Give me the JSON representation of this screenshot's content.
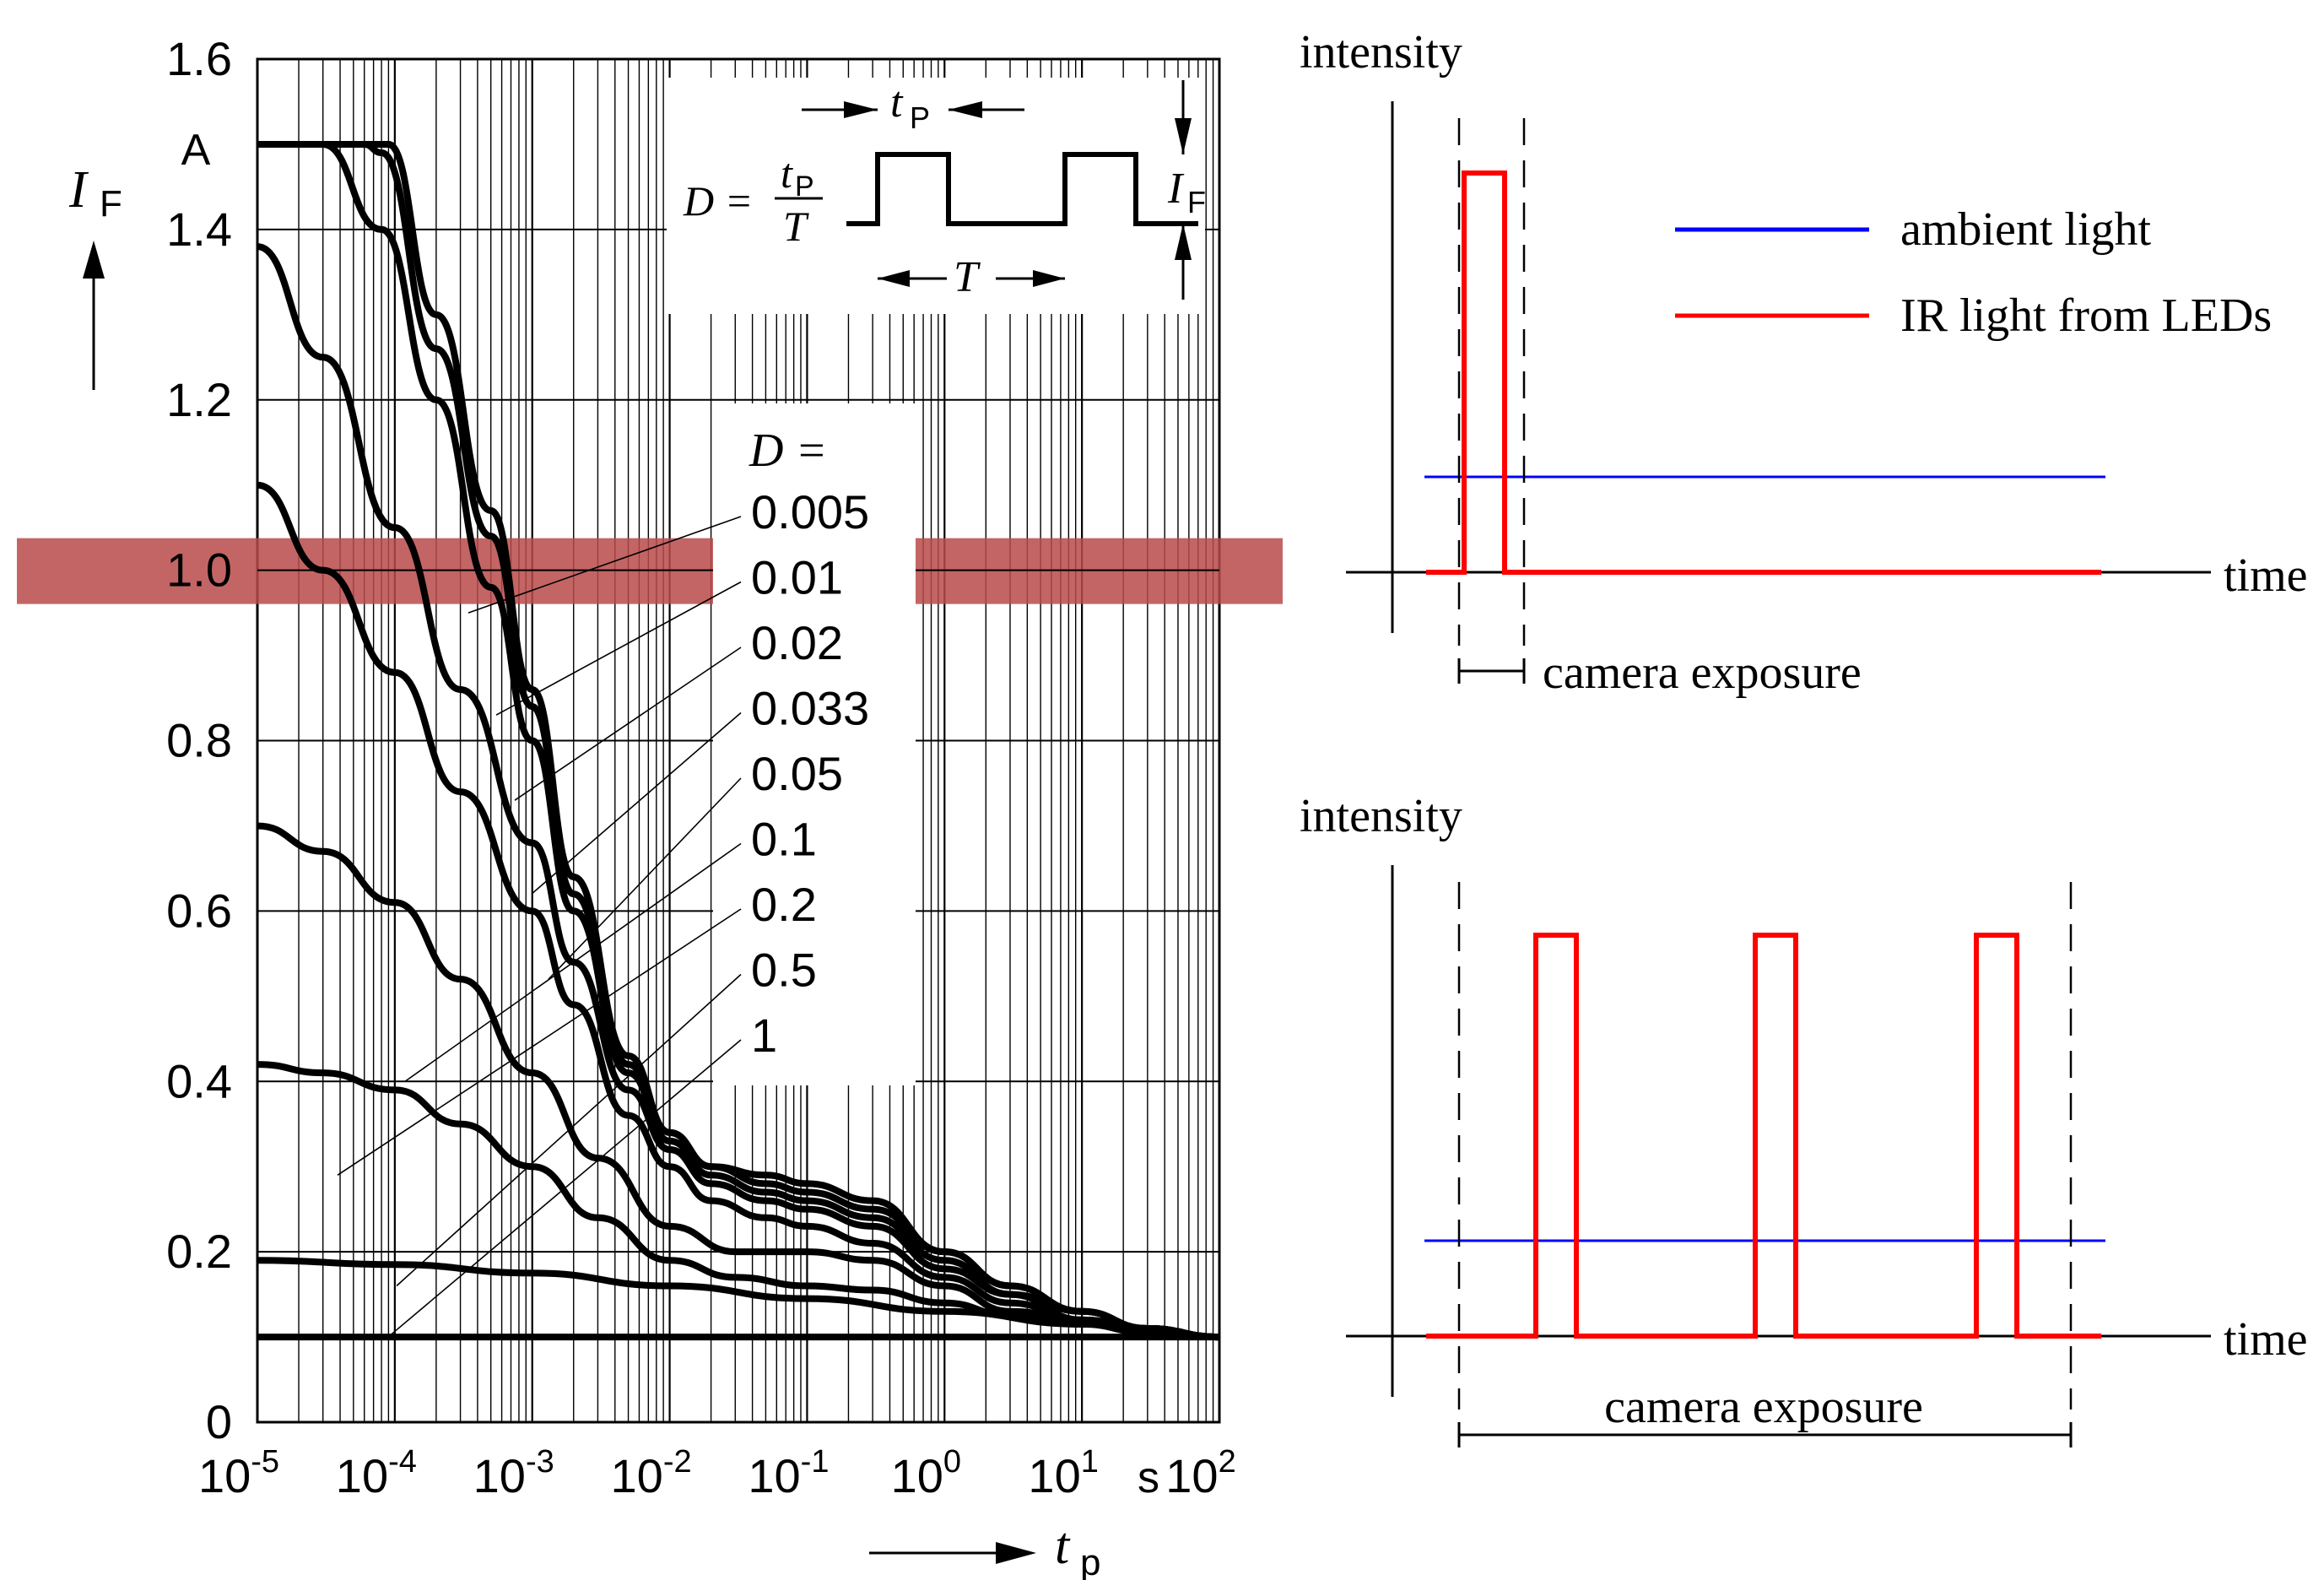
{
  "chart_data": [
    {
      "type": "line",
      "title": "",
      "xlabel": "t",
      "xlabel_sub": "p",
      "ylabel": "I",
      "ylabel_sub": "F",
      "y_unit": "A",
      "x_unit": "s",
      "x_scale": "log",
      "xlim": [
        1e-05,
        100
      ],
      "ylim": [
        0,
        1.6
      ],
      "grid": true,
      "x_ticks": [
        {
          "base": "10",
          "exp": "-5"
        },
        {
          "base": "10",
          "exp": "-4"
        },
        {
          "base": "10",
          "exp": "-3"
        },
        {
          "base": "10",
          "exp": "-2"
        },
        {
          "base": "10",
          "exp": "-1"
        },
        {
          "base": "10",
          "exp": "0"
        },
        {
          "base": "10",
          "exp": "1"
        },
        {
          "base": "10",
          "exp": "2"
        }
      ],
      "y_ticks": [
        "0",
        "0.2",
        "0.4",
        "0.6",
        "0.8",
        "1.0",
        "1.2",
        "1.4",
        "1.6"
      ],
      "highlight_band": {
        "y": 1.0,
        "color": "#b94a4a"
      },
      "inset": {
        "formula_lhs": "D =",
        "frac_num": "t",
        "frac_num_sub": "P",
        "frac_den": "T",
        "tp_label": "t",
        "tp_label_sub": "P",
        "T_label": "T",
        "if_label": "I",
        "if_label_sub": "F"
      },
      "legend_title": "D =",
      "series": [
        {
          "name": "0.005",
          "x": [
            1e-05,
            6e-05,
            9e-05,
            0.0002,
            0.0005,
            0.001,
            0.002,
            0.005,
            0.01,
            0.02,
            0.05,
            0.1,
            0.3,
            1,
            3,
            10,
            30,
            100
          ],
          "y": [
            1.5,
            1.5,
            1.5,
            1.3,
            1.07,
            0.86,
            0.64,
            0.43,
            0.34,
            0.3,
            0.29,
            0.28,
            0.26,
            0.2,
            0.16,
            0.13,
            0.11,
            0.1
          ]
        },
        {
          "name": "0.01",
          "x": [
            1e-05,
            6e-05,
            8e-05,
            0.0002,
            0.0005,
            0.001,
            0.002,
            0.005,
            0.01,
            0.02,
            0.05,
            0.1,
            0.3,
            1,
            3,
            10,
            30,
            100
          ],
          "y": [
            1.5,
            1.5,
            1.49,
            1.26,
            1.04,
            0.84,
            0.62,
            0.42,
            0.34,
            0.3,
            0.28,
            0.27,
            0.25,
            0.2,
            0.16,
            0.13,
            0.11,
            0.1
          ]
        },
        {
          "name": "0.02",
          "x": [
            1e-05,
            3e-05,
            8e-05,
            0.0002,
            0.0005,
            0.001,
            0.002,
            0.005,
            0.01,
            0.02,
            0.05,
            0.1,
            0.3,
            1,
            3,
            10,
            30,
            100
          ],
          "y": [
            1.5,
            1.5,
            1.4,
            1.2,
            0.98,
            0.8,
            0.6,
            0.41,
            0.33,
            0.29,
            0.27,
            0.26,
            0.24,
            0.19,
            0.15,
            0.13,
            0.11,
            0.1
          ]
        },
        {
          "name": "0.033",
          "x": [
            1e-05,
            3e-05,
            0.0001,
            0.0003,
            0.001,
            0.002,
            0.005,
            0.01,
            0.02,
            0.05,
            0.1,
            0.3,
            1,
            3,
            10,
            30,
            100
          ],
          "y": [
            1.38,
            1.25,
            1.05,
            0.86,
            0.68,
            0.54,
            0.39,
            0.32,
            0.28,
            0.26,
            0.25,
            0.23,
            0.18,
            0.15,
            0.12,
            0.11,
            0.1
          ]
        },
        {
          "name": "0.05",
          "x": [
            1e-05,
            3e-05,
            0.0001,
            0.0003,
            0.001,
            0.002,
            0.005,
            0.01,
            0.02,
            0.05,
            0.1,
            0.3,
            1,
            3,
            10,
            30,
            100
          ],
          "y": [
            1.1,
            1.0,
            0.88,
            0.74,
            0.6,
            0.49,
            0.36,
            0.3,
            0.26,
            0.24,
            0.23,
            0.21,
            0.17,
            0.14,
            0.12,
            0.11,
            0.1
          ]
        },
        {
          "name": "0.1",
          "x": [
            1e-05,
            3e-05,
            0.0001,
            0.0003,
            0.001,
            0.003,
            0.01,
            0.03,
            0.1,
            0.3,
            1,
            3,
            10,
            30,
            100
          ],
          "y": [
            0.7,
            0.67,
            0.61,
            0.52,
            0.41,
            0.31,
            0.23,
            0.2,
            0.2,
            0.19,
            0.16,
            0.13,
            0.12,
            0.11,
            0.1
          ]
        },
        {
          "name": "0.2",
          "x": [
            1e-05,
            3e-05,
            0.0001,
            0.0003,
            0.001,
            0.003,
            0.01,
            0.03,
            0.1,
            0.3,
            1,
            3,
            10,
            30,
            100
          ],
          "y": [
            0.42,
            0.41,
            0.39,
            0.35,
            0.3,
            0.24,
            0.19,
            0.17,
            0.16,
            0.155,
            0.14,
            0.125,
            0.115,
            0.105,
            0.1
          ]
        },
        {
          "name": "0.5",
          "x": [
            1e-05,
            0.0001,
            0.001,
            0.01,
            0.1,
            1,
            10,
            100
          ],
          "y": [
            0.19,
            0.185,
            0.175,
            0.16,
            0.145,
            0.13,
            0.115,
            0.1
          ]
        },
        {
          "name": "1",
          "x": [
            1e-05,
            0.001,
            0.1,
            10,
            100
          ],
          "y": [
            0.1,
            0.1,
            0.1,
            0.1,
            0.1
          ]
        }
      ]
    },
    {
      "type": "line",
      "title": "",
      "ylabel": "intensity",
      "xlabel": "time",
      "annotation": "camera exposure",
      "series": [
        {
          "name": "ambient light",
          "color": "#0000ff",
          "pulses": 0
        },
        {
          "name": "IR light from LEDs",
          "color": "#ff0000",
          "pulses": 1
        }
      ]
    },
    {
      "type": "line",
      "title": "",
      "ylabel": "intensity",
      "xlabel": "time",
      "annotation": "camera exposure",
      "series": [
        {
          "color": "#0000ff",
          "pulses": 0
        },
        {
          "color": "#ff0000",
          "pulses": 3
        }
      ]
    }
  ]
}
